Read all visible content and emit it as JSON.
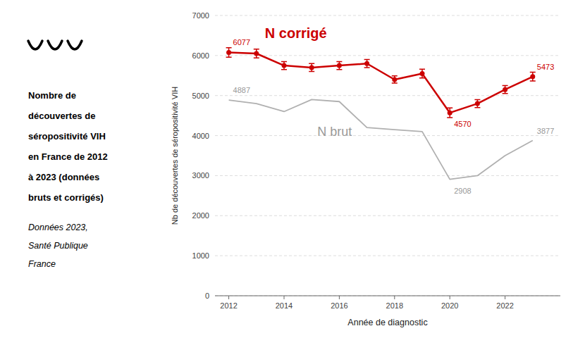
{
  "chart_data": {
    "type": "line",
    "title": "Nombre de\ndécouvertes de\nséropositivité VIH\nen France de 2012\nà 2023 (données\nbruts et corrigés)",
    "subtitle": "Données 2023,\nSanté Publique\nFrance",
    "x": [
      2012,
      2013,
      2014,
      2015,
      2016,
      2017,
      2018,
      2019,
      2020,
      2021,
      2022,
      2023
    ],
    "series": [
      {
        "name": "N corrigé",
        "color": "#cc0000",
        "marker": "circle",
        "values": [
          6077,
          6050,
          5750,
          5700,
          5750,
          5800,
          5400,
          5550,
          4570,
          4800,
          5150,
          5473
        ],
        "errors": [
          120,
          110,
          100,
          100,
          100,
          100,
          90,
          110,
          120,
          100,
          100,
          110
        ]
      },
      {
        "name": "N brut",
        "color": "#b0b0b0",
        "marker": "none",
        "values": [
          4887,
          4800,
          4600,
          4900,
          4850,
          4200,
          4150,
          4100,
          2908,
          3000,
          3500,
          3877
        ]
      }
    ],
    "xlabel": "Année de diagnostic",
    "ylabel": "Nb de découvertes de séropositivité VIH",
    "xlim": [
      2011.5,
      2024
    ],
    "xticks": [
      2012,
      2014,
      2016,
      2018,
      2020,
      2022
    ],
    "ylim": [
      0,
      7000
    ],
    "yticks": [
      0,
      1000,
      2000,
      3000,
      4000,
      5000,
      6000,
      7000
    ],
    "grid": true,
    "annotations": [
      {
        "text": "6077",
        "x": 2012,
        "y": 6077,
        "color": "#cc0000"
      },
      {
        "text": "4570",
        "x": 2020,
        "y": 4570,
        "color": "#cc0000"
      },
      {
        "text": "5473",
        "x": 2023,
        "y": 5473,
        "color": "#cc0000"
      },
      {
        "text": "4887",
        "x": 2012,
        "y": 4887,
        "color": "#999999"
      },
      {
        "text": "2908",
        "x": 2020,
        "y": 2908,
        "color": "#999999"
      },
      {
        "text": "3877",
        "x": 2023,
        "y": 3877,
        "color": "#999999"
      }
    ]
  }
}
